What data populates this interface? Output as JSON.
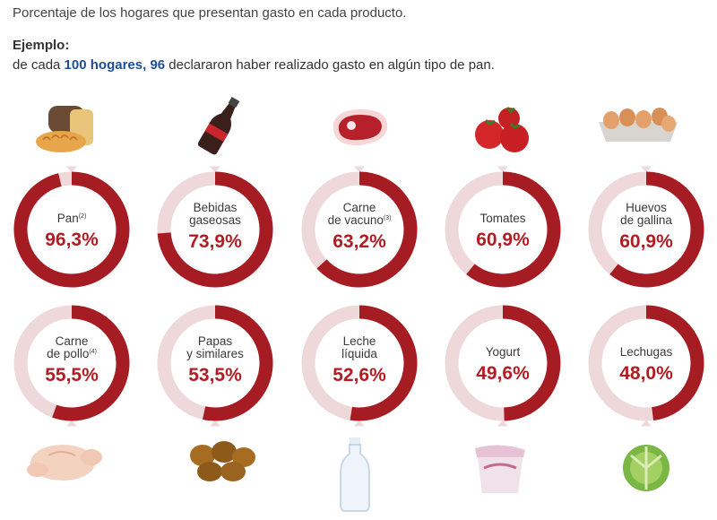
{
  "header": {
    "subtitle": "Porcentaje de los hogares que presentan gasto en cada producto.",
    "example_label": "Ejemplo:",
    "example_pre": "de cada ",
    "example_hl1": "100 hogares,",
    "example_mid": " ",
    "example_hl2": "96",
    "example_post": " declararon haber realizado gasto en algún tipo de pan."
  },
  "colors": {
    "ring": "#a51c22",
    "track": "#eed8da",
    "value": "#b01e24",
    "label": "#3a3a3a",
    "highlight": "#1f4e96"
  },
  "chart_data": {
    "type": "donut",
    "unit": "%",
    "items": [
      {
        "label": [
          "Pan"
        ],
        "sup": "(2)",
        "value": 96.3,
        "display": "96,3%",
        "icon": "bread-icon"
      },
      {
        "label": [
          "Bebidas",
          "gaseosas"
        ],
        "sup": "",
        "value": 73.9,
        "display": "73,9%",
        "icon": "soda-bottle-icon"
      },
      {
        "label": [
          "Carne",
          "de vacuno"
        ],
        "sup": "(3)",
        "value": 63.2,
        "display": "63,2%",
        "icon": "steak-icon"
      },
      {
        "label": [
          "Tomates"
        ],
        "sup": "",
        "value": 60.9,
        "display": "60,9%",
        "icon": "tomato-icon"
      },
      {
        "label": [
          "Huevos",
          "de gallina"
        ],
        "sup": "",
        "value": 60.9,
        "display": "60,9%",
        "icon": "egg-carton-icon"
      },
      {
        "label": [
          "Carne",
          "de pollo"
        ],
        "sup": "(4)",
        "value": 55.5,
        "display": "55,5%",
        "icon": "chicken-icon"
      },
      {
        "label": [
          "Papas",
          "y similares"
        ],
        "sup": "",
        "value": 53.5,
        "display": "53,5%",
        "icon": "potato-icon"
      },
      {
        "label": [
          "Leche",
          "líquida"
        ],
        "sup": "",
        "value": 52.6,
        "display": "52,6%",
        "icon": "milk-bottle-icon"
      },
      {
        "label": [
          "Yogurt"
        ],
        "sup": "",
        "value": 49.6,
        "display": "49,6%",
        "icon": "yogurt-icon"
      },
      {
        "label": [
          "Lechugas"
        ],
        "sup": "",
        "value": 48.0,
        "display": "48,0%",
        "icon": "lettuce-icon"
      }
    ]
  }
}
